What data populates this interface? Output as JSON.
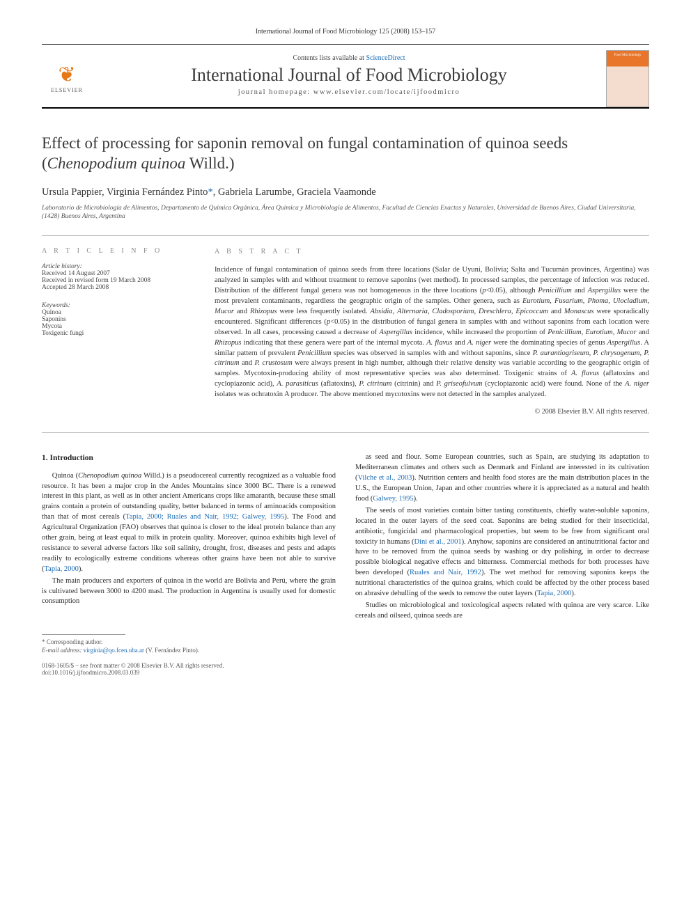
{
  "header_meta": "International Journal of Food Microbiology 125 (2008) 153–157",
  "masthead": {
    "contents_prefix": "Contents lists available at ",
    "contents_link": "ScienceDirect",
    "journal_name": "International Journal of Food Microbiology",
    "homepage": "journal homepage: www.elsevier.com/locate/ijfoodmicro",
    "elsevier_label": "ELSEVIER",
    "cover_text": "Food Microbiology"
  },
  "title_html": "Effect of processing for saponin removal on fungal contamination of quinoa seeds (<em>Chenopodium quinoa</em> Willd.)",
  "authors_html": "Ursula Pappier, Virginia Fernández Pinto<span class='corr'>*</span>, Gabriela Larumbe, Graciela Vaamonde",
  "affiliation": "Laboratorio de Microbiología de Alimentos, Departamento de Química Orgánica, Área Química y Microbiología de Alimentos, Facultad de Ciencias Exactas y Naturales, Universidad de Buenos Aires, Ciudad Universitaria, (1428) Buenos Aires, Argentina",
  "info": {
    "label": "A R T I C L E   I N F O",
    "history_head": "Article history:",
    "history": [
      "Received 14 August 2007",
      "Received in revised form 19 March 2008",
      "Accepted 28 March 2008"
    ],
    "keywords_head": "Keywords:",
    "keywords": [
      "Quinoa",
      "Saponins",
      "Mycota",
      "Toxigenic fungi"
    ]
  },
  "abstract": {
    "label": "A B S T R A C T",
    "body_html": "Incidence of fungal contamination of quinoa seeds from three locations (Salar de Uyuni, Bolivia; Salta and Tucumán provinces, Argentina) was analyzed in samples with and without treatment to remove saponins (wet method). In processed samples, the percentage of infection was reduced. Distribution of the different fungal genera was not homogeneous in the three locations (<em>p</em>&lt;0.05), although <em>Penicillium</em> and <em>Aspergillus</em> were the most prevalent contaminants, regardless the geographic origin of the samples. Other genera, such as <em>Eurotium</em>, <em>Fusarium</em>, <em>Phoma</em>, <em>Ulocladium</em>, <em>Mucor</em> and <em>Rhizopus</em> were less frequently isolated. <em>Absidia</em>, <em>Alternaria</em>, <em>Cladosporium</em>, <em>Dreschlera</em>, <em>Epicoccum</em> and <em>Monascus</em> were sporadically encountered. Significant differences (<em>p</em>&lt;0.05) in the distribution of fungal genera in samples with and without saponins from each location were observed. In all cases, processing caused a decrease of <em>Aspergillus</em> incidence, while increased the proportion of <em>Penicillium</em>, <em>Eurotium</em>, <em>Mucor</em> and <em>Rhizopus</em> indicating that these genera were part of the internal mycota. <em>A. flavus</em> and <em>A. niger</em> were the dominating species of genus <em>Aspergillus</em>. A similar pattern of prevalent <em>Penicillium</em> species was observed in samples with and without saponins, since <em>P. aurantiogriseum</em>, <em>P. chrysogenum</em>, <em>P. citrinum</em> and <em>P. crustosum</em> were always present in high number, although their relative density was variable according to the geographic origin of samples. Mycotoxin-producing ability of most representative species was also determined. Toxigenic strains of <em>A. flavus</em> (aflatoxins and cyclopiazonic acid), <em>A. parasiticus</em> (aflatoxins), <em>P. citrinum</em> (citrinin) and <em>P. griseofulvum</em> (cyclopiazonic acid) were found. None of the <em>A. niger</em> isolates was ochratoxin A producer. The above mentioned mycotoxins were not detected in the samples analyzed.",
    "copyright": "© 2008 Elsevier B.V. All rights reserved."
  },
  "body": {
    "section_heading": "1. Introduction",
    "p1_html": "Quinoa (<em>Chenopodium quinoa</em> Willd.) is a pseudocereal currently recognized as a valuable food resource. It has been a major crop in the Andes Mountains since 3000 BC. There is a renewed interest in this plant, as well as in other ancient Americans crops like amaranth, because these small grains contain a protein of outstanding quality, better balanced in terms of aminoacids composition than that of most cereals (<span class='cite'>Tapia, 2000; Ruales and Nair, 1992; Galwey, 1995</span>). The Food and Agricultural Organization (FAO) observes that quinoa is closer to the ideal protein balance than any other grain, being at least equal to milk in protein quality. Moreover, quinoa exhibits high level of resistance to several adverse factors like soil salinity, drought, frost, diseases and pests and adapts readily to ecologically extreme conditions whereas other grains have been not able to survive (<span class='cite'>Tapia, 2000</span>).",
    "p2_html": "The main producers and exporters of quinoa in the world are Bolivia and Perú, where the grain is cultivated between 3000 to 4200 masl. The production in Argentina is usually used for domestic consumption",
    "p3_html": "as seed and flour. Some European countries, such as Spain, are studying its adaptation to Mediterranean climates and others such as Denmark and Finland are interested in its cultivation (<span class='cite'>Vilche et al., 2003</span>). Nutrition centers and health food stores are the main distribution places in the U.S., the European Union, Japan and other countries where it is appreciated as a natural and health food (<span class='cite'>Galwey, 1995</span>).",
    "p4_html": "The seeds of most varieties contain bitter tasting constituents, chiefly water-soluble saponins, located in the outer layers of the seed coat. Saponins are being studied for their insecticidal, antibiotic, fungicidal and pharmacological properties, but seem to be free from significant oral toxicity in humans (<span class='cite'>Dini et al., 2001</span>). Anyhow, saponins are considered an antinutritional factor and have to be removed from the quinoa seeds by washing or dry polishing, in order to decrease possible biological negative effects and bitterness. Commercial methods for both processes have been developed (<span class='cite'>Ruales and Nair, 1992</span>). The wet method for removing saponins keeps the nutritional characteristics of the quinoa grains, which could be affected by the other process based on abrasive dehulling of the seeds to remove the outer layers (<span class='cite'>Tapia, 2000</span>).",
    "p5_html": "Studies on microbiological and toxicological aspects related with quinoa are very scarce. Like cereals and oilseed, quinoa seeds are"
  },
  "footnotes": {
    "corr": "* Corresponding author.",
    "email_label": "E-mail address:",
    "email": "virginia@qo.fcen.uba.ar",
    "email_suffix": "(V. Fernández Pinto)."
  },
  "footer": {
    "issn_line": "0168-1605/$ – see front matter © 2008 Elsevier B.V. All rights reserved.",
    "doi": "doi:10.1016/j.ijfoodmicro.2008.03.039"
  },
  "colors": {
    "link": "#1b6bb5",
    "elsevier_orange": "#e67817",
    "text": "#2a2a2a",
    "muted": "#555555",
    "rule": "#bbbbbb"
  }
}
